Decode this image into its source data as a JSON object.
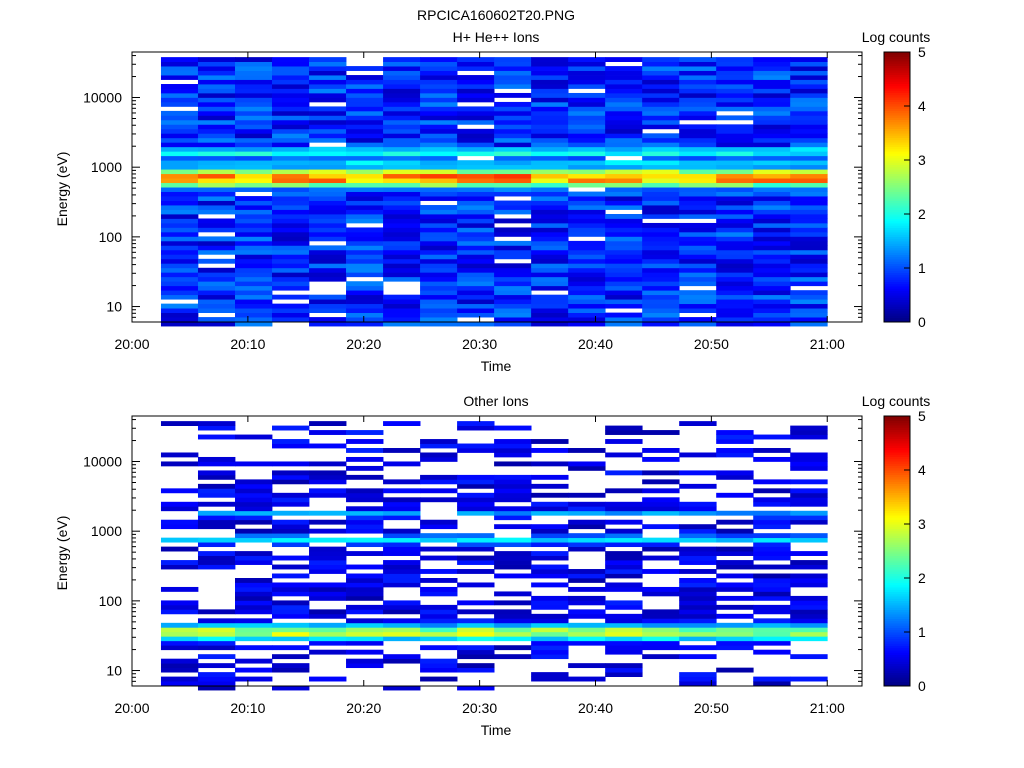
{
  "figure": {
    "title": "RPCICA160602T20.PNG"
  },
  "colorbar": {
    "label": "Log counts",
    "ticks": [
      "0",
      "1",
      "2",
      "3",
      "4",
      "5"
    ],
    "range": [
      0,
      5
    ],
    "colormap": "jet"
  },
  "chart_data": [
    {
      "type": "heatmap",
      "title": "H+ He++ Ions",
      "xlabel": "Time",
      "ylabel": "Energy (eV)",
      "yscale": "log",
      "ylim": [
        6,
        45000
      ],
      "xlim": [
        "20:00",
        "21:03"
      ],
      "x_ticks": [
        "20:00",
        "20:10",
        "20:20",
        "20:30",
        "20:40",
        "20:50",
        "21:00"
      ],
      "y_ticks": [
        "10",
        "100",
        "1000",
        "10000"
      ],
      "x_start": "20:02:30",
      "x_end": "21:00",
      "n_time_bins": 18,
      "n_energy_bins": 60,
      "profile": [
        {
          "log10_energy": 2.85,
          "peak_log_counts": 3.7,
          "width": 0.11
        },
        {
          "log10_energy": 3.22,
          "peak_log_counts": 2.0,
          "width": 0.06
        },
        {
          "log10_energy": 3.05,
          "peak_log_counts": 1.7,
          "width": 0.08
        }
      ],
      "background_log_counts": 0.8,
      "gap_fraction": 0.06
    },
    {
      "type": "heatmap",
      "title": "Other Ions",
      "xlabel": "Time",
      "ylabel": "Energy (eV)",
      "yscale": "log",
      "ylim": [
        6,
        45000
      ],
      "xlim": [
        "20:00",
        "21:03"
      ],
      "x_ticks": [
        "20:00",
        "20:10",
        "20:20",
        "20:30",
        "20:40",
        "20:50",
        "21:00"
      ],
      "y_ticks": [
        "10",
        "100",
        "1000",
        "10000"
      ],
      "x_start": "20:02:30",
      "x_end": "21:00",
      "n_time_bins": 18,
      "n_energy_bins": 60,
      "profile": [
        {
          "log10_energy": 1.55,
          "peak_log_counts": 2.8,
          "width": 0.09
        },
        {
          "log10_energy": 2.88,
          "peak_log_counts": 1.7,
          "width": 0.06
        },
        {
          "log10_energy": 3.25,
          "peak_log_counts": 1.4,
          "width": 0.05
        }
      ],
      "background_log_counts": 0.5,
      "gap_fraction": 0.42
    }
  ]
}
